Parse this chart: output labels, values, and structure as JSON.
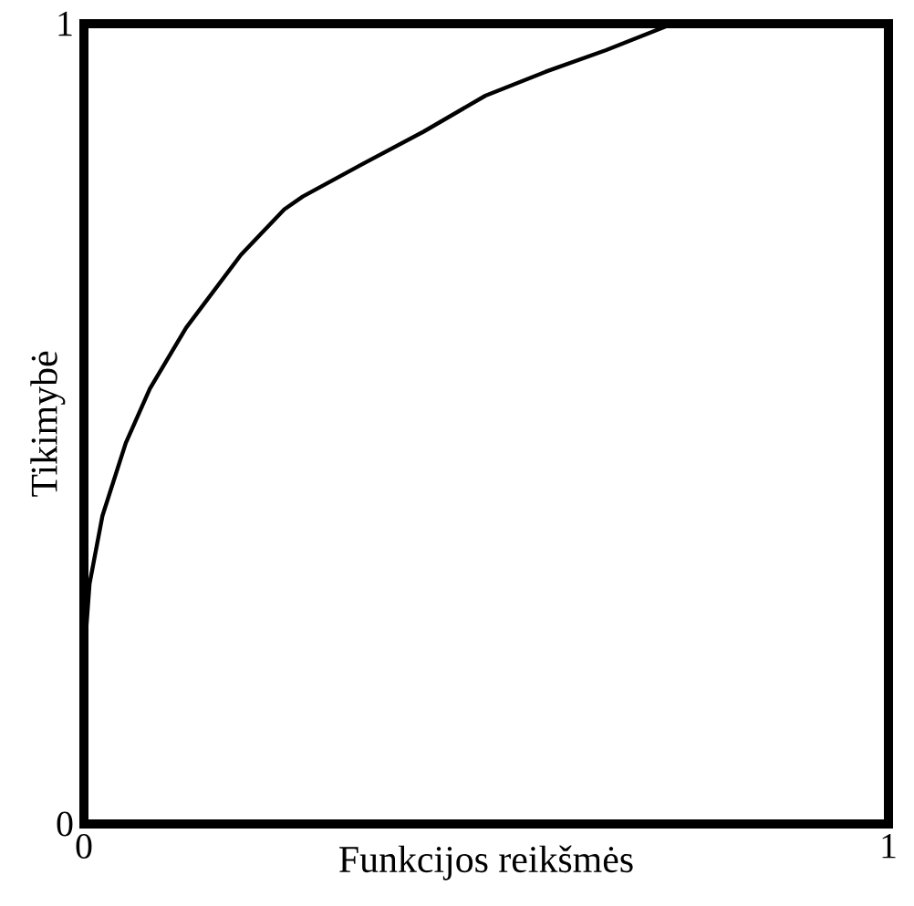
{
  "chart_data": {
    "type": "line",
    "xlabel": "Funkcijos reikšmės",
    "ylabel": "Tikimybė",
    "xlim": [
      0,
      1
    ],
    "ylim": [
      0,
      1
    ],
    "xticks": [
      0,
      1
    ],
    "yticks": [
      0,
      1
    ],
    "marker": "none",
    "line_style": "solid",
    "series": [
      {
        "color": "#000000",
        "x": [
          0,
          0.002,
          0.007,
          0.023,
          0.052,
          0.082,
          0.127,
          0.195,
          0.249,
          0.272,
          0.347,
          0.422,
          0.499,
          0.574,
          0.649,
          0.732
        ],
        "values": [
          0.2,
          0.232,
          0.3,
          0.385,
          0.476,
          0.544,
          0.62,
          0.711,
          0.768,
          0.784,
          0.825,
          0.865,
          0.91,
          0.94,
          0.967,
          1.0
        ]
      }
    ]
  }
}
